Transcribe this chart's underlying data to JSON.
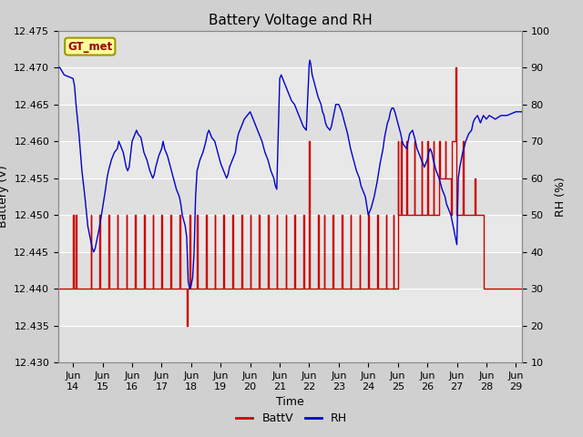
{
  "title": "Battery Voltage and RH",
  "xlabel": "Time",
  "ylabel_left": "Battery (V)",
  "ylabel_right": "RH (%)",
  "xlim": [
    13.5,
    29.2
  ],
  "ylim_left": [
    12.43,
    12.475
  ],
  "ylim_right": [
    10,
    100
  ],
  "yticks_left": [
    12.43,
    12.435,
    12.44,
    12.445,
    12.45,
    12.455,
    12.46,
    12.465,
    12.47,
    12.475
  ],
  "yticks_right": [
    10,
    20,
    30,
    40,
    50,
    60,
    70,
    80,
    90,
    100
  ],
  "xtick_positions": [
    14,
    15,
    16,
    17,
    18,
    19,
    20,
    21,
    22,
    23,
    24,
    25,
    26,
    27,
    28,
    29
  ],
  "xtick_labels": [
    "Jun\n14",
    "Jun\n15",
    "Jun\n16",
    "Jun\n17",
    "Jun\n18",
    "Jun\n19",
    "Jun\n20",
    "Jun\n21",
    "Jun\n22",
    "Jun\n23",
    "Jun\n24",
    "Jun\n25",
    "Jun\n26",
    "Jun\n27",
    "Jun\n28",
    "Jun\n29"
  ],
  "fig_facecolor": "#d0d0d0",
  "ax_facecolor": "#e8e8e8",
  "grid_color": "#ffffff",
  "legend_label": "GT_met",
  "legend_box_facecolor": "#ffff99",
  "legend_box_edgecolor": "#999900",
  "batt_color": "#cc0000",
  "rh_color": "#0000cc",
  "title_fontsize": 11,
  "label_fontsize": 9,
  "tick_fontsize": 8,
  "batt_data": [
    [
      13.5,
      12.44
    ],
    [
      14.0,
      12.44
    ],
    [
      14.0,
      12.45
    ],
    [
      14.02,
      12.45
    ],
    [
      14.02,
      12.44
    ],
    [
      14.1,
      12.44
    ],
    [
      14.1,
      12.45
    ],
    [
      14.12,
      12.45
    ],
    [
      14.12,
      12.44
    ],
    [
      14.6,
      12.44
    ],
    [
      14.6,
      12.45
    ],
    [
      14.62,
      12.45
    ],
    [
      14.62,
      12.44
    ],
    [
      14.9,
      12.44
    ],
    [
      14.9,
      12.45
    ],
    [
      14.92,
      12.45
    ],
    [
      14.92,
      12.44
    ],
    [
      15.2,
      12.44
    ],
    [
      15.2,
      12.45
    ],
    [
      15.22,
      12.45
    ],
    [
      15.22,
      12.44
    ],
    [
      15.5,
      12.44
    ],
    [
      15.5,
      12.45
    ],
    [
      15.52,
      12.45
    ],
    [
      15.52,
      12.44
    ],
    [
      15.8,
      12.44
    ],
    [
      15.8,
      12.45
    ],
    [
      15.82,
      12.45
    ],
    [
      15.82,
      12.44
    ],
    [
      16.1,
      12.44
    ],
    [
      16.1,
      12.45
    ],
    [
      16.12,
      12.45
    ],
    [
      16.12,
      12.44
    ],
    [
      16.4,
      12.44
    ],
    [
      16.4,
      12.45
    ],
    [
      16.42,
      12.45
    ],
    [
      16.42,
      12.44
    ],
    [
      16.7,
      12.44
    ],
    [
      16.7,
      12.45
    ],
    [
      16.72,
      12.45
    ],
    [
      16.72,
      12.44
    ],
    [
      17.0,
      12.44
    ],
    [
      17.0,
      12.45
    ],
    [
      17.02,
      12.45
    ],
    [
      17.02,
      12.44
    ],
    [
      17.3,
      12.44
    ],
    [
      17.3,
      12.45
    ],
    [
      17.32,
      12.45
    ],
    [
      17.32,
      12.44
    ],
    [
      17.6,
      12.44
    ],
    [
      17.6,
      12.45
    ],
    [
      17.62,
      12.45
    ],
    [
      17.62,
      12.44
    ],
    [
      17.85,
      12.44
    ],
    [
      17.85,
      12.435
    ],
    [
      17.87,
      12.435
    ],
    [
      17.87,
      12.44
    ],
    [
      17.95,
      12.44
    ],
    [
      17.95,
      12.45
    ],
    [
      17.97,
      12.45
    ],
    [
      17.97,
      12.44
    ],
    [
      18.2,
      12.44
    ],
    [
      18.2,
      12.45
    ],
    [
      18.22,
      12.45
    ],
    [
      18.22,
      12.44
    ],
    [
      18.5,
      12.44
    ],
    [
      18.5,
      12.45
    ],
    [
      18.52,
      12.45
    ],
    [
      18.52,
      12.44
    ],
    [
      18.8,
      12.44
    ],
    [
      18.8,
      12.45
    ],
    [
      18.82,
      12.45
    ],
    [
      18.82,
      12.44
    ],
    [
      19.1,
      12.44
    ],
    [
      19.1,
      12.45
    ],
    [
      19.12,
      12.45
    ],
    [
      19.12,
      12.44
    ],
    [
      19.4,
      12.44
    ],
    [
      19.4,
      12.45
    ],
    [
      19.42,
      12.45
    ],
    [
      19.42,
      12.44
    ],
    [
      19.7,
      12.44
    ],
    [
      19.7,
      12.45
    ],
    [
      19.72,
      12.45
    ],
    [
      19.72,
      12.44
    ],
    [
      20.0,
      12.44
    ],
    [
      20.0,
      12.45
    ],
    [
      20.02,
      12.45
    ],
    [
      20.02,
      12.44
    ],
    [
      20.3,
      12.44
    ],
    [
      20.3,
      12.45
    ],
    [
      20.32,
      12.45
    ],
    [
      20.32,
      12.44
    ],
    [
      20.6,
      12.44
    ],
    [
      20.6,
      12.45
    ],
    [
      20.62,
      12.45
    ],
    [
      20.62,
      12.44
    ],
    [
      20.9,
      12.44
    ],
    [
      20.9,
      12.45
    ],
    [
      20.92,
      12.45
    ],
    [
      20.92,
      12.44
    ],
    [
      21.2,
      12.44
    ],
    [
      21.2,
      12.45
    ],
    [
      21.22,
      12.45
    ],
    [
      21.22,
      12.44
    ],
    [
      21.5,
      12.44
    ],
    [
      21.5,
      12.45
    ],
    [
      21.52,
      12.45
    ],
    [
      21.52,
      12.44
    ],
    [
      21.8,
      12.44
    ],
    [
      21.8,
      12.45
    ],
    [
      21.82,
      12.45
    ],
    [
      21.82,
      12.44
    ],
    [
      22.0,
      12.44
    ],
    [
      22.0,
      12.46
    ],
    [
      22.02,
      12.46
    ],
    [
      22.02,
      12.44
    ],
    [
      22.3,
      12.44
    ],
    [
      22.3,
      12.45
    ],
    [
      22.32,
      12.45
    ],
    [
      22.32,
      12.44
    ],
    [
      22.5,
      12.44
    ],
    [
      22.5,
      12.45
    ],
    [
      22.52,
      12.45
    ],
    [
      22.52,
      12.44
    ],
    [
      22.8,
      12.44
    ],
    [
      22.8,
      12.45
    ],
    [
      22.82,
      12.45
    ],
    [
      22.82,
      12.44
    ],
    [
      23.1,
      12.44
    ],
    [
      23.1,
      12.45
    ],
    [
      23.12,
      12.45
    ],
    [
      23.12,
      12.44
    ],
    [
      23.4,
      12.44
    ],
    [
      23.4,
      12.45
    ],
    [
      23.42,
      12.45
    ],
    [
      23.42,
      12.44
    ],
    [
      23.7,
      12.44
    ],
    [
      23.7,
      12.45
    ],
    [
      23.72,
      12.45
    ],
    [
      23.72,
      12.44
    ],
    [
      24.0,
      12.44
    ],
    [
      24.0,
      12.45
    ],
    [
      24.02,
      12.45
    ],
    [
      24.02,
      12.44
    ],
    [
      24.3,
      12.44
    ],
    [
      24.3,
      12.45
    ],
    [
      24.32,
      12.45
    ],
    [
      24.32,
      12.44
    ],
    [
      24.6,
      12.44
    ],
    [
      24.6,
      12.45
    ],
    [
      24.62,
      12.45
    ],
    [
      24.62,
      12.44
    ],
    [
      24.85,
      12.44
    ],
    [
      24.85,
      12.45
    ],
    [
      24.87,
      12.45
    ],
    [
      24.87,
      12.44
    ],
    [
      25.0,
      12.44
    ],
    [
      25.0,
      12.46
    ],
    [
      25.02,
      12.46
    ],
    [
      25.02,
      12.45
    ],
    [
      25.1,
      12.45
    ],
    [
      25.1,
      12.46
    ],
    [
      25.12,
      12.46
    ],
    [
      25.12,
      12.45
    ],
    [
      25.3,
      12.45
    ],
    [
      25.3,
      12.46
    ],
    [
      25.32,
      12.46
    ],
    [
      25.32,
      12.45
    ],
    [
      25.55,
      12.45
    ],
    [
      25.55,
      12.46
    ],
    [
      25.57,
      12.46
    ],
    [
      25.57,
      12.45
    ],
    [
      25.8,
      12.45
    ],
    [
      25.8,
      12.46
    ],
    [
      25.82,
      12.46
    ],
    [
      25.82,
      12.45
    ],
    [
      26.0,
      12.45
    ],
    [
      26.0,
      12.46
    ],
    [
      26.02,
      12.46
    ],
    [
      26.02,
      12.45
    ],
    [
      26.2,
      12.45
    ],
    [
      26.2,
      12.46
    ],
    [
      26.22,
      12.46
    ],
    [
      26.22,
      12.45
    ],
    [
      26.4,
      12.45
    ],
    [
      26.4,
      12.46
    ],
    [
      26.42,
      12.46
    ],
    [
      26.42,
      12.455
    ],
    [
      26.6,
      12.455
    ],
    [
      26.6,
      12.46
    ],
    [
      26.62,
      12.46
    ],
    [
      26.62,
      12.455
    ],
    [
      26.8,
      12.455
    ],
    [
      26.8,
      12.45
    ],
    [
      26.82,
      12.45
    ],
    [
      26.82,
      12.46
    ],
    [
      26.95,
      12.46
    ],
    [
      26.95,
      12.47
    ],
    [
      26.97,
      12.47
    ],
    [
      26.97,
      12.45
    ],
    [
      27.2,
      12.45
    ],
    [
      27.2,
      12.46
    ],
    [
      27.22,
      12.46
    ],
    [
      27.22,
      12.45
    ],
    [
      27.6,
      12.45
    ],
    [
      27.6,
      12.455
    ],
    [
      27.62,
      12.455
    ],
    [
      27.62,
      12.45
    ],
    [
      27.9,
      12.45
    ],
    [
      27.9,
      12.44
    ],
    [
      29.2,
      12.44
    ]
  ],
  "rh_data": [
    [
      13.5,
      90
    ],
    [
      13.55,
      90
    ],
    [
      13.7,
      88
    ],
    [
      14.0,
      87
    ],
    [
      14.05,
      85
    ],
    [
      14.1,
      80
    ],
    [
      14.2,
      72
    ],
    [
      14.3,
      62
    ],
    [
      14.4,
      55
    ],
    [
      14.5,
      47
    ],
    [
      14.6,
      43
    ],
    [
      14.65,
      41
    ],
    [
      14.7,
      40
    ],
    [
      14.75,
      41
    ],
    [
      14.8,
      43
    ],
    [
      14.9,
      47
    ],
    [
      15.0,
      52
    ],
    [
      15.1,
      57
    ],
    [
      15.15,
      60
    ],
    [
      15.2,
      62
    ],
    [
      15.3,
      65
    ],
    [
      15.4,
      67
    ],
    [
      15.5,
      68
    ],
    [
      15.55,
      70
    ],
    [
      15.6,
      69
    ],
    [
      15.7,
      67
    ],
    [
      15.75,
      65
    ],
    [
      15.8,
      63
    ],
    [
      15.85,
      62
    ],
    [
      15.9,
      63
    ],
    [
      16.0,
      70
    ],
    [
      16.05,
      71
    ],
    [
      16.1,
      72
    ],
    [
      16.15,
      73
    ],
    [
      16.2,
      72
    ],
    [
      16.3,
      71
    ],
    [
      16.35,
      69
    ],
    [
      16.4,
      67
    ],
    [
      16.5,
      65
    ],
    [
      16.6,
      62
    ],
    [
      16.7,
      60
    ],
    [
      16.75,
      61
    ],
    [
      16.8,
      63
    ],
    [
      16.9,
      66
    ],
    [
      17.0,
      68
    ],
    [
      17.05,
      70
    ],
    [
      17.1,
      68
    ],
    [
      17.2,
      66
    ],
    [
      17.3,
      63
    ],
    [
      17.4,
      60
    ],
    [
      17.5,
      57
    ],
    [
      17.6,
      55
    ],
    [
      17.65,
      53
    ],
    [
      17.7,
      50
    ],
    [
      17.8,
      47
    ],
    [
      17.85,
      44
    ],
    [
      17.9,
      32
    ],
    [
      17.95,
      30
    ],
    [
      18.0,
      31
    ],
    [
      18.05,
      33
    ],
    [
      18.1,
      40
    ],
    [
      18.15,
      55
    ],
    [
      18.2,
      62
    ],
    [
      18.3,
      65
    ],
    [
      18.4,
      67
    ],
    [
      18.5,
      70
    ],
    [
      18.55,
      72
    ],
    [
      18.6,
      73
    ],
    [
      18.65,
      72
    ],
    [
      18.7,
      71
    ],
    [
      18.8,
      70
    ],
    [
      18.9,
      67
    ],
    [
      19.0,
      64
    ],
    [
      19.1,
      62
    ],
    [
      19.2,
      60
    ],
    [
      19.25,
      61
    ],
    [
      19.3,
      63
    ],
    [
      19.4,
      65
    ],
    [
      19.5,
      67
    ],
    [
      19.55,
      70
    ],
    [
      19.6,
      72
    ],
    [
      19.7,
      74
    ],
    [
      19.8,
      76
    ],
    [
      19.9,
      77
    ],
    [
      20.0,
      78
    ],
    [
      20.05,
      77
    ],
    [
      20.1,
      76
    ],
    [
      20.2,
      74
    ],
    [
      20.3,
      72
    ],
    [
      20.4,
      70
    ],
    [
      20.5,
      67
    ],
    [
      20.6,
      65
    ],
    [
      20.7,
      62
    ],
    [
      20.8,
      60
    ],
    [
      20.85,
      58
    ],
    [
      20.9,
      57
    ],
    [
      21.0,
      87
    ],
    [
      21.05,
      88
    ],
    [
      21.1,
      87
    ],
    [
      21.2,
      85
    ],
    [
      21.3,
      83
    ],
    [
      21.4,
      81
    ],
    [
      21.5,
      80
    ],
    [
      21.6,
      78
    ],
    [
      21.7,
      76
    ],
    [
      21.75,
      75
    ],
    [
      21.8,
      74
    ],
    [
      21.9,
      73
    ],
    [
      22.0,
      91
    ],
    [
      22.02,
      92
    ],
    [
      22.05,
      91
    ],
    [
      22.1,
      88
    ],
    [
      22.2,
      85
    ],
    [
      22.3,
      82
    ],
    [
      22.4,
      80
    ],
    [
      22.45,
      78
    ],
    [
      22.5,
      77
    ],
    [
      22.55,
      75
    ],
    [
      22.6,
      74
    ],
    [
      22.7,
      73
    ],
    [
      22.75,
      74
    ],
    [
      22.8,
      76
    ],
    [
      22.9,
      80
    ],
    [
      23.0,
      80
    ],
    [
      23.05,
      79
    ],
    [
      23.1,
      78
    ],
    [
      23.2,
      75
    ],
    [
      23.3,
      72
    ],
    [
      23.4,
      68
    ],
    [
      23.5,
      65
    ],
    [
      23.6,
      62
    ],
    [
      23.7,
      60
    ],
    [
      23.75,
      58
    ],
    [
      23.8,
      57
    ],
    [
      23.9,
      55
    ],
    [
      24.0,
      50
    ],
    [
      24.1,
      52
    ],
    [
      24.2,
      55
    ],
    [
      24.3,
      59
    ],
    [
      24.4,
      64
    ],
    [
      24.5,
      68
    ],
    [
      24.55,
      71
    ],
    [
      24.6,
      73
    ],
    [
      24.65,
      75
    ],
    [
      24.7,
      76
    ],
    [
      24.75,
      78
    ],
    [
      24.8,
      79
    ],
    [
      24.85,
      79
    ],
    [
      24.9,
      78
    ],
    [
      25.0,
      75
    ],
    [
      25.1,
      72
    ],
    [
      25.15,
      70
    ],
    [
      25.2,
      69
    ],
    [
      25.3,
      68
    ],
    [
      25.35,
      70
    ],
    [
      25.4,
      72
    ],
    [
      25.5,
      73
    ],
    [
      25.6,
      70
    ],
    [
      25.65,
      68
    ],
    [
      25.7,
      67
    ],
    [
      25.8,
      65
    ],
    [
      25.9,
      63
    ],
    [
      26.0,
      65
    ],
    [
      26.05,
      67
    ],
    [
      26.1,
      68
    ],
    [
      26.15,
      67
    ],
    [
      26.2,
      65
    ],
    [
      26.3,
      62
    ],
    [
      26.4,
      60
    ],
    [
      26.5,
      57
    ],
    [
      26.6,
      55
    ],
    [
      26.65,
      53
    ],
    [
      26.7,
      52
    ],
    [
      26.8,
      50
    ],
    [
      26.85,
      48
    ],
    [
      26.9,
      46
    ],
    [
      26.95,
      44
    ],
    [
      27.0,
      42
    ],
    [
      27.05,
      60
    ],
    [
      27.1,
      63
    ],
    [
      27.2,
      67
    ],
    [
      27.3,
      70
    ],
    [
      27.4,
      72
    ],
    [
      27.5,
      73
    ],
    [
      27.55,
      75
    ],
    [
      27.6,
      76
    ],
    [
      27.7,
      77
    ],
    [
      27.75,
      76
    ],
    [
      27.8,
      75
    ],
    [
      27.85,
      76
    ],
    [
      27.9,
      77
    ],
    [
      28.0,
      76
    ],
    [
      28.1,
      77
    ],
    [
      28.3,
      76
    ],
    [
      28.5,
      77
    ],
    [
      28.7,
      77
    ],
    [
      29.0,
      78
    ],
    [
      29.2,
      78
    ]
  ]
}
